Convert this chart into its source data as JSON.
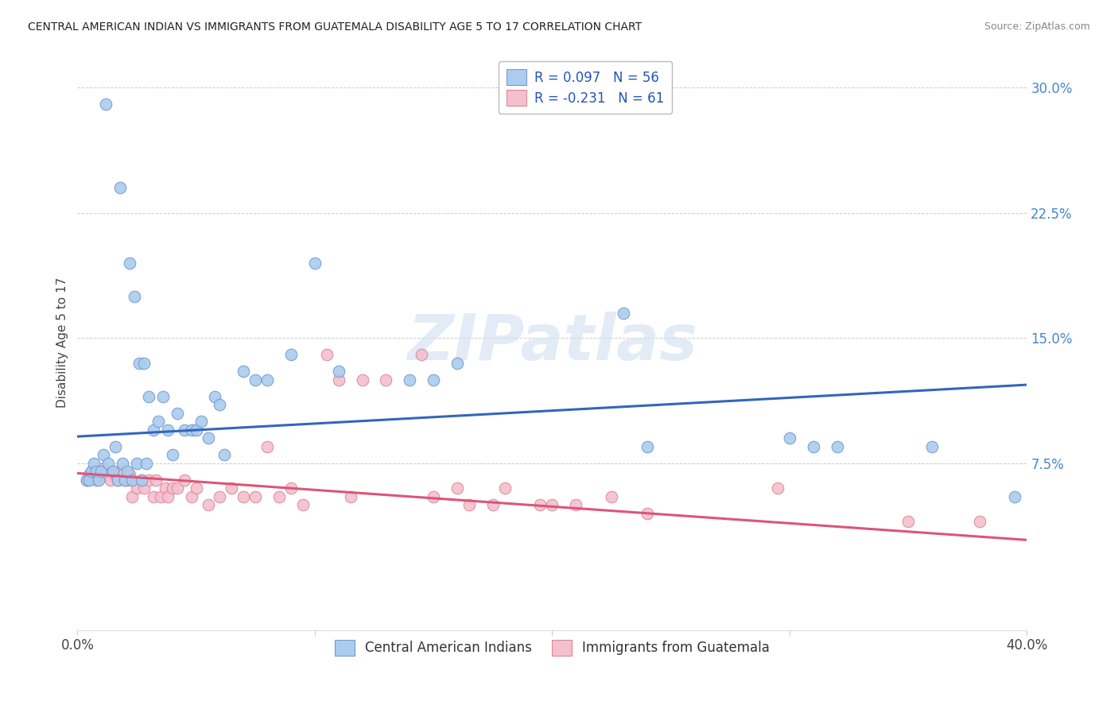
{
  "title": "CENTRAL AMERICAN INDIAN VS IMMIGRANTS FROM GUATEMALA DISABILITY AGE 5 TO 17 CORRELATION CHART",
  "source": "Source: ZipAtlas.com",
  "ylabel": "Disability Age 5 to 17",
  "xlim": [
    0.0,
    0.4
  ],
  "ylim": [
    -0.025,
    0.32
  ],
  "background_color": "#ffffff",
  "grid_color": "#cccccc",
  "watermark_text": "ZIPatlas",
  "series1_face": "#aaccee",
  "series1_edge": "#7799cc",
  "series1_line": "#3366bb",
  "series2_face": "#f4bfce",
  "series2_edge": "#dd8899",
  "series2_line": "#dd5577",
  "legend_label1": "Central American Indians",
  "legend_label2": "Immigrants from Guatemala",
  "legend_text1": "R = 0.097   N = 56",
  "legend_text2": "R = -0.231   N = 61",
  "blue_x": [
    0.012,
    0.018,
    0.022,
    0.024,
    0.026,
    0.028,
    0.03,
    0.032,
    0.034,
    0.036,
    0.038,
    0.04,
    0.042,
    0.045,
    0.048,
    0.05,
    0.052,
    0.055,
    0.058,
    0.06,
    0.062,
    0.004,
    0.005,
    0.006,
    0.007,
    0.008,
    0.009,
    0.01,
    0.011,
    0.013,
    0.015,
    0.016,
    0.017,
    0.019,
    0.02,
    0.021,
    0.023,
    0.025,
    0.027,
    0.029,
    0.07,
    0.075,
    0.08,
    0.09,
    0.1,
    0.11,
    0.14,
    0.15,
    0.16,
    0.23,
    0.24,
    0.3,
    0.31,
    0.32,
    0.36,
    0.395
  ],
  "blue_y": [
    0.29,
    0.24,
    0.195,
    0.175,
    0.135,
    0.135,
    0.115,
    0.095,
    0.1,
    0.115,
    0.095,
    0.08,
    0.105,
    0.095,
    0.095,
    0.095,
    0.1,
    0.09,
    0.115,
    0.11,
    0.08,
    0.065,
    0.065,
    0.07,
    0.075,
    0.07,
    0.065,
    0.07,
    0.08,
    0.075,
    0.07,
    0.085,
    0.065,
    0.075,
    0.065,
    0.07,
    0.065,
    0.075,
    0.065,
    0.075,
    0.13,
    0.125,
    0.125,
    0.14,
    0.195,
    0.13,
    0.125,
    0.125,
    0.135,
    0.165,
    0.085,
    0.09,
    0.085,
    0.085,
    0.085,
    0.055
  ],
  "pink_x": [
    0.004,
    0.005,
    0.006,
    0.007,
    0.008,
    0.009,
    0.01,
    0.011,
    0.012,
    0.014,
    0.015,
    0.016,
    0.017,
    0.018,
    0.019,
    0.02,
    0.021,
    0.022,
    0.023,
    0.025,
    0.027,
    0.028,
    0.03,
    0.032,
    0.033,
    0.035,
    0.037,
    0.038,
    0.04,
    0.042,
    0.045,
    0.048,
    0.05,
    0.055,
    0.06,
    0.065,
    0.07,
    0.075,
    0.08,
    0.085,
    0.09,
    0.095,
    0.105,
    0.11,
    0.115,
    0.12,
    0.13,
    0.145,
    0.15,
    0.16,
    0.165,
    0.175,
    0.18,
    0.195,
    0.2,
    0.21,
    0.225,
    0.24,
    0.295,
    0.35,
    0.38
  ],
  "pink_y": [
    0.065,
    0.068,
    0.07,
    0.07,
    0.065,
    0.068,
    0.07,
    0.072,
    0.068,
    0.065,
    0.07,
    0.068,
    0.065,
    0.07,
    0.068,
    0.065,
    0.065,
    0.068,
    0.055,
    0.06,
    0.065,
    0.06,
    0.065,
    0.055,
    0.065,
    0.055,
    0.06,
    0.055,
    0.06,
    0.06,
    0.065,
    0.055,
    0.06,
    0.05,
    0.055,
    0.06,
    0.055,
    0.055,
    0.085,
    0.055,
    0.06,
    0.05,
    0.14,
    0.125,
    0.055,
    0.125,
    0.125,
    0.14,
    0.055,
    0.06,
    0.05,
    0.05,
    0.06,
    0.05,
    0.05,
    0.05,
    0.055,
    0.045,
    0.06,
    0.04,
    0.04
  ]
}
